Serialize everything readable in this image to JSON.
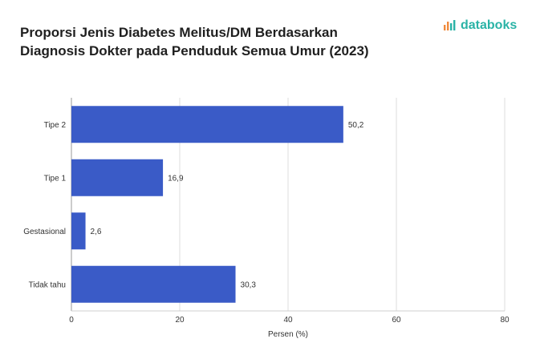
{
  "title": "Proporsi Jenis Diabetes Melitus/DM Berdasarkan Diagnosis Dokter pada Penduduk Semua Umur (2023)",
  "brand": {
    "name": "databoks",
    "icon": "databoks-logo-icon",
    "color": "#2ab3a6",
    "accent": "#f08a3c"
  },
  "chart_data": {
    "type": "bar",
    "orientation": "horizontal",
    "categories": [
      "Tipe 2",
      "Tipe 1",
      "Gestasional",
      "Tidak tahu"
    ],
    "values": [
      50.2,
      16.9,
      2.6,
      30.3
    ],
    "value_labels": [
      "50,2",
      "16,9",
      "2,6",
      "30,3"
    ],
    "xlabel": "Persen (%)",
    "ylabel": "",
    "xlim": [
      0,
      80
    ],
    "xticks": [
      0,
      20,
      40,
      60,
      80
    ],
    "grid": true,
    "bar_color": "#3a5bc7"
  }
}
